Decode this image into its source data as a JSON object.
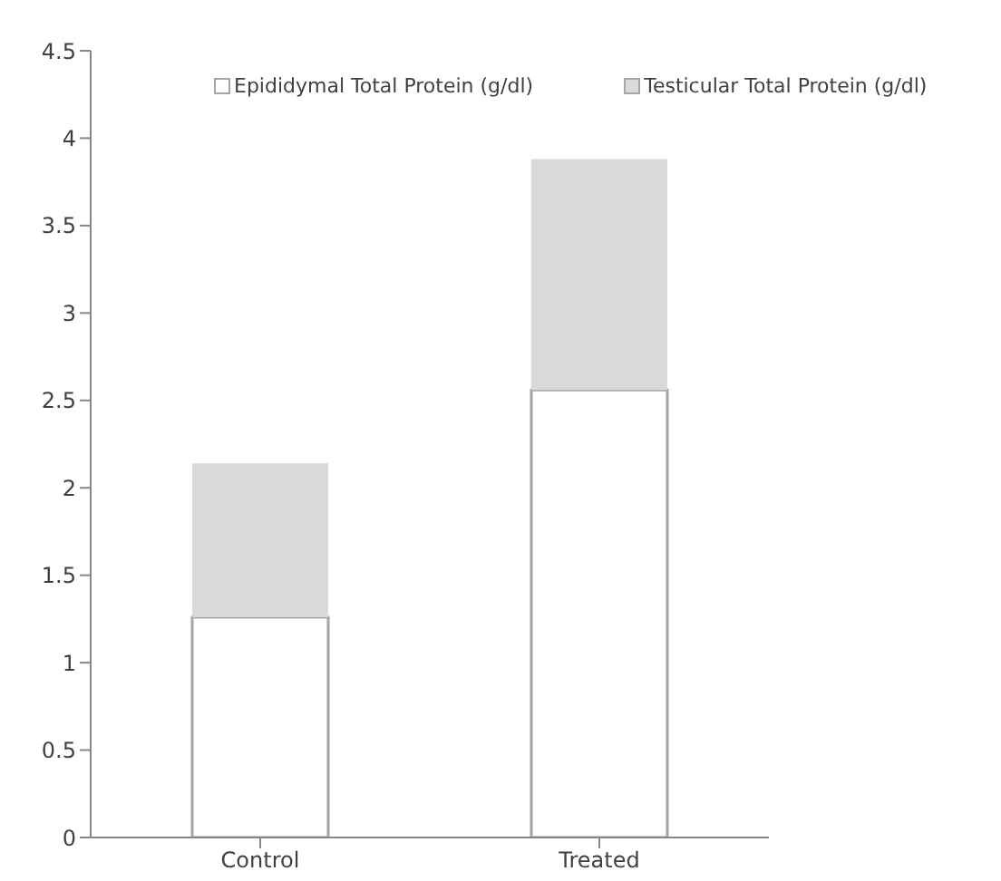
{
  "chart_data": {
    "type": "bar",
    "stacked": true,
    "categories": [
      "Control",
      "Treated"
    ],
    "series": [
      {
        "name": "Epididymal Total Protein (g/dl)",
        "color": "#ffffff",
        "values": [
          1.26,
          2.56
        ]
      },
      {
        "name": "Testicular Total Protein (g/dl)",
        "color": "#d9d9d9",
        "values": [
          0.88,
          1.32
        ]
      }
    ],
    "ylim": [
      0,
      4.5
    ],
    "yticks": [
      0,
      0.5,
      1,
      1.5,
      2,
      2.5,
      3,
      3.5,
      4,
      4.5
    ],
    "grid": false,
    "legend": "top"
  }
}
